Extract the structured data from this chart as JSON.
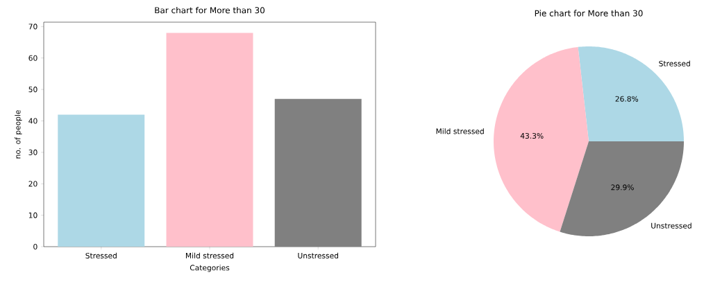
{
  "chart_data": [
    {
      "type": "bar",
      "title": "Bar chart for More than 30",
      "xlabel": "Categories",
      "ylabel": "no. of people",
      "categories": [
        "Stressed",
        "Mild stressed",
        "Unstressed"
      ],
      "values": [
        42,
        68,
        47
      ],
      "colors": [
        "#add8e6",
        "#ffc0cb",
        "#808080"
      ],
      "ylim": [
        0,
        71.4
      ],
      "yticks": [
        0,
        10,
        20,
        30,
        40,
        50,
        60,
        70
      ]
    },
    {
      "type": "pie",
      "title": "Pie chart for More than 30",
      "categories": [
        "Stressed",
        "Mild stressed",
        "Unstressed"
      ],
      "values": [
        26.8,
        43.3,
        29.9
      ],
      "colors": [
        "#add8e6",
        "#ffc0cb",
        "#808080"
      ],
      "value_labels": [
        "26.8%",
        "43.3%",
        "29.9%"
      ]
    }
  ]
}
